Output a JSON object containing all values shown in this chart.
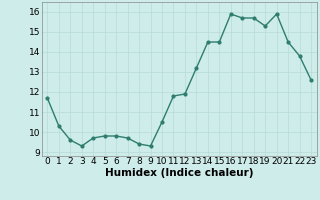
{
  "x": [
    0,
    1,
    2,
    3,
    4,
    5,
    6,
    7,
    8,
    9,
    10,
    11,
    12,
    13,
    14,
    15,
    16,
    17,
    18,
    19,
    20,
    21,
    22,
    23
  ],
  "y": [
    11.7,
    10.3,
    9.6,
    9.3,
    9.7,
    9.8,
    9.8,
    9.7,
    9.4,
    9.3,
    10.5,
    11.8,
    11.9,
    13.2,
    14.5,
    14.5,
    15.9,
    15.7,
    15.7,
    15.3,
    15.9,
    14.5,
    13.8,
    12.6
  ],
  "line_color": "#2e7d6e",
  "marker": "o",
  "marker_size": 2.0,
  "bg_color": "#ceecea",
  "grid_color": "#b8dbd8",
  "xlabel": "Humidex (Indice chaleur)",
  "xlim": [
    -0.5,
    23.5
  ],
  "ylim": [
    8.8,
    16.5
  ],
  "yticks": [
    9,
    10,
    11,
    12,
    13,
    14,
    15,
    16
  ],
  "xtick_labels": [
    "0",
    "1",
    "2",
    "3",
    "4",
    "5",
    "6",
    "7",
    "8",
    "9",
    "10",
    "11",
    "12",
    "13",
    "14",
    "15",
    "16",
    "17",
    "18",
    "19",
    "20",
    "21",
    "22",
    "23"
  ],
  "xlabel_fontsize": 7.5,
  "tick_fontsize": 6.5,
  "linewidth": 1.0
}
